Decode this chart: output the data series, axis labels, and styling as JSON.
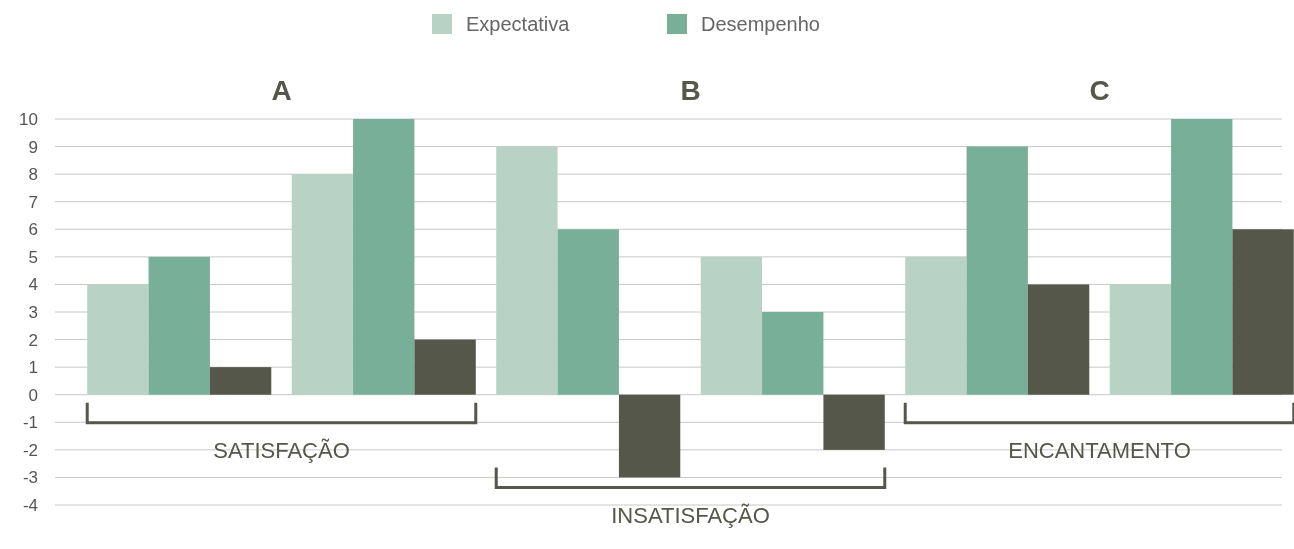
{
  "chart_data": {
    "type": "bar",
    "categories": [
      null,
      null,
      null,
      null,
      null,
      null
    ],
    "series": [
      {
        "name": "Expectativa",
        "color": "#b8d3c6",
        "values": [
          4,
          8,
          9,
          5,
          5,
          4
        ]
      },
      {
        "name": "Desempenho",
        "color": "#78af98",
        "values": [
          5,
          10,
          6,
          3,
          9,
          10
        ]
      },
      {
        "color": "#54574a",
        "values": [
          1,
          2,
          -3,
          -2,
          4,
          6
        ]
      }
    ],
    "ylim": [
      -4,
      10
    ],
    "yticks": [
      -4,
      -3,
      -2,
      -1,
      0,
      1,
      2,
      3,
      4,
      5,
      6,
      7,
      8,
      9,
      10
    ],
    "grid": "y",
    "legend": "top",
    "annotations": [
      "A",
      "B",
      "C",
      "SATISFAÇÃO",
      "INSATISFAÇÃO",
      "ENCANTAMENTO"
    ]
  }
}
